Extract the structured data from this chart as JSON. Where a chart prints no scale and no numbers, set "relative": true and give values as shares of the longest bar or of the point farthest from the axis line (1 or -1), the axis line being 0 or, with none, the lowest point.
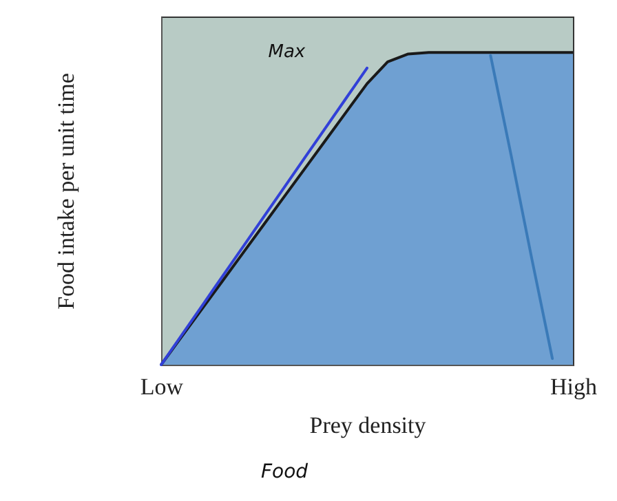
{
  "chart_data": {
    "type": "area",
    "xlabel": "Prey density",
    "ylabel": "Food intake per unit time",
    "relative": true,
    "grid": false,
    "categories": [
      "Low",
      null,
      null,
      null,
      null,
      null,
      null,
      null,
      null,
      null,
      null,
      null,
      null,
      null,
      null,
      null,
      null,
      null,
      null,
      null,
      "High"
    ],
    "series": [
      {
        "color": "#6fa0d2",
        "values": [
          0,
          0.09,
          0.18,
          0.27,
          0.36,
          0.45,
          0.54,
          0.63,
          0.72,
          0.81,
          0.9,
          0.97,
          0.995,
          1,
          1,
          1,
          1,
          1,
          1,
          1,
          1
        ]
      },
      {
        "type": "line",
        "color": "#3140d8",
        "values": [
          0,
          0.095,
          0.19,
          0.285,
          0.38,
          0.475,
          0.57,
          0.665,
          0.76,
          0.855,
          0.95,
          null,
          null,
          null,
          null,
          null,
          null,
          null,
          null,
          null,
          null
        ]
      },
      {
        "type": "line",
        "color": "#3a7ab8",
        "values": [
          null,
          null,
          null,
          null,
          null,
          null,
          null,
          null,
          null,
          null,
          null,
          null,
          null,
          null,
          null,
          null,
          0.99,
          0.67,
          0.34,
          0.02,
          null
        ]
      }
    ],
    "annotations": [
      "Max",
      "Food"
    ]
  }
}
